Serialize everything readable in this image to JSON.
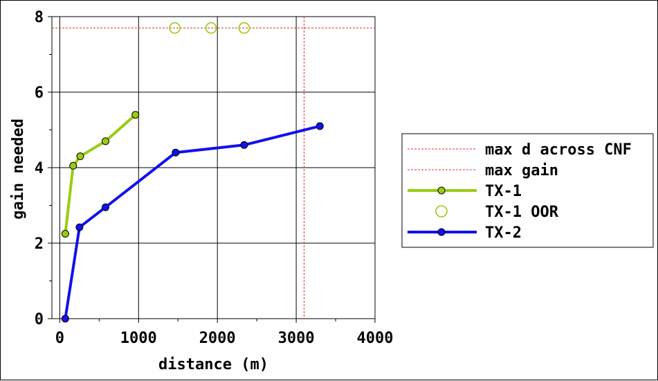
{
  "chart_data": {
    "type": "line",
    "xlabel": "distance (m)",
    "ylabel": "gain needed",
    "xlim": [
      -100,
      4000
    ],
    "ylim": [
      0,
      8
    ],
    "x_ticks": [
      "0",
      "1000",
      "2000",
      "3000",
      "4000"
    ],
    "y_ticks": [
      "0",
      "2",
      "4",
      "6",
      "8"
    ],
    "grid": true,
    "legend_position": "right",
    "reference_lines": [
      {
        "name": "max d across CNF",
        "orientation": "vertical",
        "value": 3100,
        "color": "#e03030"
      },
      {
        "name": "max gain",
        "orientation": "horizontal",
        "value": 7.7,
        "color": "#e03030"
      }
    ],
    "series": [
      {
        "name": "TX-1",
        "color": "#99cc11",
        "x": [
          70,
          170,
          260,
          580,
          960
        ],
        "y": [
          2.25,
          4.05,
          4.3,
          4.7,
          5.4
        ]
      },
      {
        "name": "TX-1 OOR",
        "color": "#99cc11",
        "marker": "open-circle",
        "x": [
          1460,
          1920,
          2340
        ],
        "y": [
          7.7,
          7.7,
          7.7
        ]
      },
      {
        "name": "TX-2",
        "color": "#1111ee",
        "x": [
          70,
          250,
          580,
          1470,
          2340,
          3300
        ],
        "y": [
          0.0,
          2.42,
          2.95,
          4.4,
          4.6,
          5.1
        ]
      }
    ]
  }
}
